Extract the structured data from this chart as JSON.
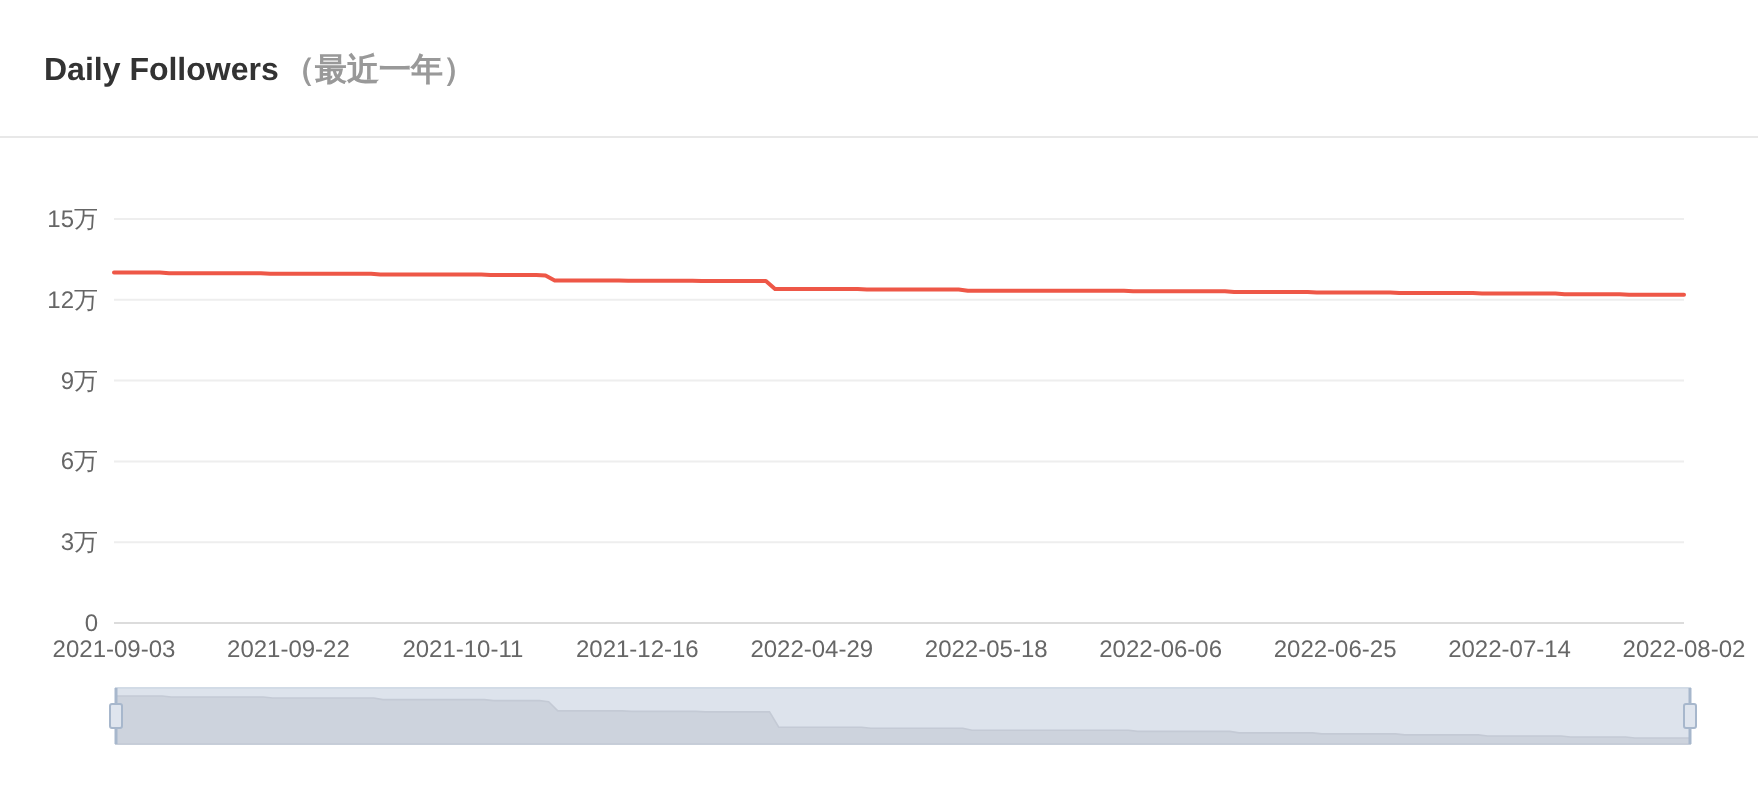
{
  "chart_data": {
    "type": "line",
    "title": "Daily Followers",
    "subtitle": "（最近一年）",
    "categories": [
      "2021-09-03",
      null,
      null,
      null,
      null,
      null,
      null,
      null,
      null,
      null,
      null,
      null,
      null,
      null,
      null,
      null,
      null,
      null,
      null,
      "2021-09-22",
      null,
      null,
      null,
      null,
      null,
      null,
      null,
      null,
      null,
      null,
      null,
      null,
      null,
      null,
      null,
      null,
      null,
      null,
      "2021-10-11",
      null,
      null,
      null,
      null,
      null,
      null,
      null,
      null,
      null,
      null,
      null,
      null,
      null,
      null,
      null,
      null,
      null,
      null,
      "2021-12-16",
      null,
      null,
      null,
      null,
      null,
      null,
      null,
      null,
      null,
      null,
      null,
      null,
      null,
      null,
      null,
      null,
      null,
      null,
      "2022-04-29",
      null,
      null,
      null,
      null,
      null,
      null,
      null,
      null,
      null,
      null,
      null,
      null,
      null,
      null,
      null,
      null,
      null,
      null,
      "2022-05-18",
      null,
      null,
      null,
      null,
      null,
      null,
      null,
      null,
      null,
      null,
      null,
      null,
      null,
      null,
      null,
      null,
      null,
      null,
      "2022-06-06",
      null,
      null,
      null,
      null,
      null,
      null,
      null,
      null,
      null,
      null,
      null,
      null,
      null,
      null,
      null,
      null,
      null,
      null,
      "2022-06-25",
      null,
      null,
      null,
      null,
      null,
      null,
      null,
      null,
      null,
      null,
      null,
      null,
      null,
      null,
      null,
      null,
      null,
      null,
      "2022-07-14",
      null,
      null,
      null,
      null,
      null,
      null,
      null,
      null,
      null,
      null,
      null,
      null,
      null,
      null,
      null,
      null,
      null,
      null,
      "2022-08-02"
    ],
    "series": [
      {
        "color": "#ee5747",
        "values": [
          13.01,
          13.01,
          13.01,
          13.01,
          13.01,
          13.01,
          12.99,
          12.99,
          12.99,
          12.99,
          12.99,
          12.99,
          12.99,
          12.99,
          12.99,
          12.99,
          12.99,
          12.97,
          12.97,
          12.97,
          12.97,
          12.97,
          12.97,
          12.97,
          12.97,
          12.97,
          12.97,
          12.97,
          12.97,
          12.94,
          12.94,
          12.94,
          12.94,
          12.94,
          12.94,
          12.94,
          12.94,
          12.94,
          12.94,
          12.94,
          12.94,
          12.92,
          12.92,
          12.92,
          12.92,
          12.92,
          12.92,
          12.9,
          12.72,
          12.72,
          12.72,
          12.72,
          12.72,
          12.72,
          12.72,
          12.72,
          12.71,
          12.71,
          12.71,
          12.71,
          12.71,
          12.71,
          12.71,
          12.71,
          12.7,
          12.7,
          12.7,
          12.7,
          12.7,
          12.7,
          12.7,
          12.7,
          12.4,
          12.4,
          12.4,
          12.4,
          12.4,
          12.4,
          12.4,
          12.4,
          12.4,
          12.4,
          12.38,
          12.38,
          12.38,
          12.38,
          12.38,
          12.38,
          12.38,
          12.38,
          12.38,
          12.38,
          12.38,
          12.34,
          12.34,
          12.34,
          12.34,
          12.34,
          12.34,
          12.34,
          12.34,
          12.34,
          12.34,
          12.34,
          12.34,
          12.34,
          12.34,
          12.34,
          12.34,
          12.34,
          12.34,
          12.32,
          12.32,
          12.32,
          12.32,
          12.32,
          12.32,
          12.32,
          12.32,
          12.32,
          12.32,
          12.32,
          12.29,
          12.29,
          12.29,
          12.29,
          12.29,
          12.29,
          12.29,
          12.29,
          12.29,
          12.27,
          12.27,
          12.27,
          12.27,
          12.27,
          12.27,
          12.27,
          12.27,
          12.27,
          12.25,
          12.25,
          12.25,
          12.25,
          12.25,
          12.25,
          12.25,
          12.25,
          12.25,
          12.23,
          12.23,
          12.23,
          12.23,
          12.23,
          12.23,
          12.23,
          12.23,
          12.23,
          12.21,
          12.21,
          12.21,
          12.21,
          12.21,
          12.21,
          12.21,
          12.19,
          12.19,
          12.19,
          12.19,
          12.19,
          12.19,
          12.19
        ]
      }
    ],
    "ylim": [
      0,
      15
    ],
    "yticks": [
      0,
      {
        "value": 3,
        "label": "3万"
      },
      {
        "value": 6,
        "label": "6万"
      },
      {
        "value": 9,
        "label": "9万"
      },
      {
        "value": 12,
        "label": "12万"
      },
      {
        "value": 15,
        "label": "15万"
      }
    ],
    "grid": "y"
  }
}
